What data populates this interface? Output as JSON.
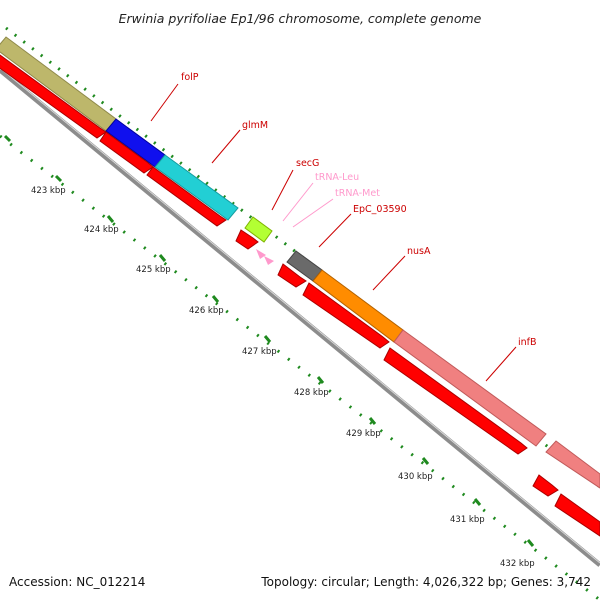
{
  "header": {
    "title": "Erwinia pyrifoliae Ep1/96 chromosome, complete genome"
  },
  "footer": {
    "accession": "Accession: NC_012214",
    "summary": "Topology: circular; Length: 4,026,322 bp; Genes: 3,742"
  },
  "map": {
    "scale_labels": [
      "423 kbp",
      "424 kbp",
      "425 kbp",
      "426 kbp",
      "427 kbp",
      "428 kbp",
      "429 kbp",
      "430 kbp",
      "431 kbp",
      "432 kbp"
    ],
    "features": [
      {
        "name": "",
        "type": "gene",
        "color": "#bdb76b"
      },
      {
        "name": "folP",
        "type": "gene",
        "color": "#0000ff"
      },
      {
        "name": "glmM",
        "type": "gene",
        "color": "#00ced1"
      },
      {
        "name": "secG",
        "type": "gene",
        "color": "#adff2f"
      },
      {
        "name": "tRNA-Leu",
        "type": "tRNA",
        "color": "#ff99cc"
      },
      {
        "name": "tRNA-Met",
        "type": "tRNA",
        "color": "#ff99cc"
      },
      {
        "name": "EpC_03590",
        "type": "gene",
        "color": "#696969"
      },
      {
        "name": "nusA",
        "type": "gene",
        "color": "#ff8c00"
      },
      {
        "name": "infB",
        "type": "gene",
        "color": "#f08080"
      }
    ],
    "colors": {
      "cds": "#ff0000",
      "backbone": "#808080",
      "label_gene": "#cc0000",
      "label_trna": "#ff99cc",
      "tick": "#1f8a1f"
    }
  }
}
